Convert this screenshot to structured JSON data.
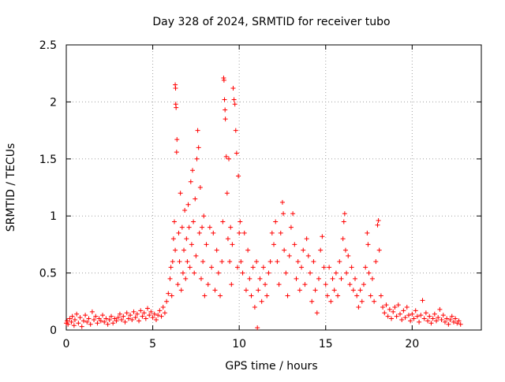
{
  "chart_data": {
    "type": "scatter",
    "title": "Day 328 of 2024, SRMTID for receiver tubo",
    "xlabel": "GPS time / hours",
    "ylabel": "SRMTID / TECUs",
    "xlim": [
      0,
      24
    ],
    "ylim": [
      0,
      2.5
    ],
    "xticks": [
      0,
      5,
      10,
      15,
      20
    ],
    "yticks": [
      0,
      0.5,
      1,
      1.5,
      2,
      2.5
    ],
    "xtick_labels": [
      "0",
      "5",
      "10",
      "15",
      "20"
    ],
    "ytick_labels": [
      "0",
      "0.5",
      "1",
      "1.5",
      "2",
      "2.5"
    ],
    "grid": true,
    "marker": "plus",
    "series": [
      {
        "name": "SRMTID",
        "color": "#ff0000",
        "points": [
          [
            0.0,
            0.06
          ],
          [
            0.05,
            0.08
          ],
          [
            0.1,
            0.05
          ],
          [
            0.2,
            0.1
          ],
          [
            0.3,
            0.07
          ],
          [
            0.35,
            0.12
          ],
          [
            0.45,
            0.04
          ],
          [
            0.5,
            0.09
          ],
          [
            0.6,
            0.14
          ],
          [
            0.7,
            0.06
          ],
          [
            0.8,
            0.11
          ],
          [
            0.9,
            0.03
          ],
          [
            1.0,
            0.08
          ],
          [
            1.1,
            0.13
          ],
          [
            1.2,
            0.07
          ],
          [
            1.3,
            0.1
          ],
          [
            1.4,
            0.05
          ],
          [
            1.5,
            0.16
          ],
          [
            1.6,
            0.09
          ],
          [
            1.7,
            0.12
          ],
          [
            1.8,
            0.06
          ],
          [
            1.9,
            0.1
          ],
          [
            2.0,
            0.08
          ],
          [
            2.1,
            0.13
          ],
          [
            2.2,
            0.07
          ],
          [
            2.3,
            0.1
          ],
          [
            2.4,
            0.05
          ],
          [
            2.5,
            0.09
          ],
          [
            2.6,
            0.12
          ],
          [
            2.7,
            0.06
          ],
          [
            2.8,
            0.1
          ],
          [
            2.9,
            0.08
          ],
          [
            3.0,
            0.11
          ],
          [
            3.1,
            0.14
          ],
          [
            3.2,
            0.09
          ],
          [
            3.3,
            0.12
          ],
          [
            3.4,
            0.07
          ],
          [
            3.5,
            0.15
          ],
          [
            3.6,
            0.1
          ],
          [
            3.7,
            0.13
          ],
          [
            3.8,
            0.09
          ],
          [
            3.9,
            0.16
          ],
          [
            4.0,
            0.11
          ],
          [
            4.1,
            0.14
          ],
          [
            4.2,
            0.08
          ],
          [
            4.3,
            0.17
          ],
          [
            4.4,
            0.12
          ],
          [
            4.5,
            0.15
          ],
          [
            4.6,
            0.1
          ],
          [
            4.7,
            0.19
          ],
          [
            4.8,
            0.13
          ],
          [
            4.9,
            0.16
          ],
          [
            5.0,
            0.11
          ],
          [
            5.1,
            0.14
          ],
          [
            5.2,
            0.09
          ],
          [
            5.3,
            0.13
          ],
          [
            5.4,
            0.17
          ],
          [
            5.5,
            0.12
          ],
          [
            5.6,
            0.2
          ],
          [
            5.7,
            0.15
          ],
          [
            5.8,
            0.25
          ],
          [
            5.9,
            0.32
          ],
          [
            6.0,
            0.45
          ],
          [
            6.05,
            0.55
          ],
          [
            6.1,
            0.3
          ],
          [
            6.15,
            0.6
          ],
          [
            6.2,
            0.8
          ],
          [
            6.25,
            0.95
          ],
          [
            6.3,
            0.7
          ],
          [
            6.3,
            2.15
          ],
          [
            6.32,
            2.12
          ],
          [
            6.33,
            1.98
          ],
          [
            6.35,
            1.95
          ],
          [
            6.38,
            1.56
          ],
          [
            6.4,
            1.67
          ],
          [
            6.45,
            0.4
          ],
          [
            6.5,
            0.85
          ],
          [
            6.55,
            0.6
          ],
          [
            6.6,
            1.2
          ],
          [
            6.65,
            0.35
          ],
          [
            6.7,
            0.9
          ],
          [
            6.75,
            0.5
          ],
          [
            6.8,
            0.7
          ],
          [
            6.85,
            1.05
          ],
          [
            6.9,
            0.45
          ],
          [
            6.95,
            0.8
          ],
          [
            7.0,
            0.6
          ],
          [
            7.05,
            1.1
          ],
          [
            7.1,
            0.9
          ],
          [
            7.15,
            0.55
          ],
          [
            7.2,
            1.3
          ],
          [
            7.25,
            0.75
          ],
          [
            7.3,
            1.4
          ],
          [
            7.35,
            0.95
          ],
          [
            7.4,
            0.5
          ],
          [
            7.45,
            1.15
          ],
          [
            7.5,
            0.65
          ],
          [
            7.55,
            1.5
          ],
          [
            7.6,
            1.75
          ],
          [
            7.65,
            1.6
          ],
          [
            7.7,
            0.85
          ],
          [
            7.75,
            1.25
          ],
          [
            7.8,
            0.45
          ],
          [
            7.85,
            0.9
          ],
          [
            7.9,
            0.6
          ],
          [
            7.95,
            1.0
          ],
          [
            8.0,
            0.3
          ],
          [
            8.1,
            0.75
          ],
          [
            8.2,
            0.4
          ],
          [
            8.3,
            0.9
          ],
          [
            8.4,
            0.55
          ],
          [
            8.5,
            0.85
          ],
          [
            8.6,
            0.35
          ],
          [
            8.7,
            0.7
          ],
          [
            8.8,
            0.5
          ],
          [
            8.9,
            0.3
          ],
          [
            9.0,
            0.6
          ],
          [
            9.05,
            0.95
          ],
          [
            9.1,
            2.21
          ],
          [
            9.12,
            2.19
          ],
          [
            9.15,
            2.02
          ],
          [
            9.18,
            1.93
          ],
          [
            9.2,
            1.85
          ],
          [
            9.25,
            1.52
          ],
          [
            9.3,
            1.2
          ],
          [
            9.35,
            0.8
          ],
          [
            9.4,
            1.5
          ],
          [
            9.45,
            0.6
          ],
          [
            9.5,
            0.9
          ],
          [
            9.55,
            0.4
          ],
          [
            9.6,
            0.75
          ],
          [
            9.65,
            2.12
          ],
          [
            9.7,
            2.02
          ],
          [
            9.75,
            1.98
          ],
          [
            9.8,
            1.75
          ],
          [
            9.85,
            1.55
          ],
          [
            9.9,
            0.55
          ],
          [
            9.95,
            1.35
          ],
          [
            10.0,
            0.85
          ],
          [
            10.05,
            0.95
          ],
          [
            10.1,
            0.6
          ],
          [
            10.2,
            0.5
          ],
          [
            10.3,
            0.85
          ],
          [
            10.4,
            0.35
          ],
          [
            10.5,
            0.7
          ],
          [
            10.6,
            0.45
          ],
          [
            10.7,
            0.3
          ],
          [
            10.8,
            0.55
          ],
          [
            10.9,
            0.2
          ],
          [
            11.0,
            0.6
          ],
          [
            11.05,
            0.02
          ],
          [
            11.1,
            0.35
          ],
          [
            11.2,
            0.45
          ],
          [
            11.3,
            0.25
          ],
          [
            11.4,
            0.55
          ],
          [
            11.5,
            0.4
          ],
          [
            11.6,
            0.3
          ],
          [
            11.7,
            0.5
          ],
          [
            11.8,
            0.6
          ],
          [
            11.9,
            0.85
          ],
          [
            12.0,
            0.75
          ],
          [
            12.1,
            0.95
          ],
          [
            12.2,
            0.6
          ],
          [
            12.3,
            0.4
          ],
          [
            12.4,
            0.85
          ],
          [
            12.5,
            1.12
          ],
          [
            12.55,
            1.02
          ],
          [
            12.6,
            0.7
          ],
          [
            12.7,
            0.5
          ],
          [
            12.8,
            0.3
          ],
          [
            12.9,
            0.65
          ],
          [
            13.0,
            0.9
          ],
          [
            13.1,
            1.02
          ],
          [
            13.2,
            0.75
          ],
          [
            13.3,
            0.45
          ],
          [
            13.4,
            0.6
          ],
          [
            13.5,
            0.35
          ],
          [
            13.6,
            0.55
          ],
          [
            13.7,
            0.7
          ],
          [
            13.8,
            0.4
          ],
          [
            13.9,
            0.8
          ],
          [
            14.0,
            0.65
          ],
          [
            14.1,
            0.5
          ],
          [
            14.2,
            0.25
          ],
          [
            14.3,
            0.6
          ],
          [
            14.4,
            0.35
          ],
          [
            14.5,
            0.15
          ],
          [
            14.6,
            0.45
          ],
          [
            14.7,
            0.7
          ],
          [
            14.8,
            0.82
          ],
          [
            14.9,
            0.55
          ],
          [
            15.0,
            0.4
          ],
          [
            15.1,
            0.3
          ],
          [
            15.2,
            0.55
          ],
          [
            15.3,
            0.25
          ],
          [
            15.4,
            0.45
          ],
          [
            15.5,
            0.35
          ],
          [
            15.6,
            0.5
          ],
          [
            15.7,
            0.3
          ],
          [
            15.8,
            0.6
          ],
          [
            15.9,
            0.45
          ],
          [
            16.0,
            0.8
          ],
          [
            16.05,
            0.95
          ],
          [
            16.1,
            1.02
          ],
          [
            16.15,
            0.7
          ],
          [
            16.2,
            0.5
          ],
          [
            16.3,
            0.65
          ],
          [
            16.4,
            0.4
          ],
          [
            16.5,
            0.55
          ],
          [
            16.6,
            0.35
          ],
          [
            16.7,
            0.45
          ],
          [
            16.8,
            0.3
          ],
          [
            16.9,
            0.2
          ],
          [
            17.0,
            0.35
          ],
          [
            17.1,
            0.25
          ],
          [
            17.2,
            0.4
          ],
          [
            17.3,
            0.55
          ],
          [
            17.4,
            0.85
          ],
          [
            17.45,
            0.75
          ],
          [
            17.5,
            0.5
          ],
          [
            17.6,
            0.3
          ],
          [
            17.7,
            0.45
          ],
          [
            17.8,
            0.25
          ],
          [
            17.9,
            0.6
          ],
          [
            18.0,
            0.92
          ],
          [
            18.05,
            0.96
          ],
          [
            18.1,
            0.7
          ],
          [
            18.2,
            0.3
          ],
          [
            18.3,
            0.2
          ],
          [
            18.4,
            0.15
          ],
          [
            18.5,
            0.22
          ],
          [
            18.6,
            0.12
          ],
          [
            18.7,
            0.18
          ],
          [
            18.8,
            0.1
          ],
          [
            18.9,
            0.16
          ],
          [
            19.0,
            0.2
          ],
          [
            19.1,
            0.12
          ],
          [
            19.2,
            0.22
          ],
          [
            19.3,
            0.14
          ],
          [
            19.4,
            0.09
          ],
          [
            19.5,
            0.17
          ],
          [
            19.6,
            0.11
          ],
          [
            19.7,
            0.2
          ],
          [
            19.8,
            0.13
          ],
          [
            19.9,
            0.08
          ],
          [
            20.0,
            0.14
          ],
          [
            20.1,
            0.1
          ],
          [
            20.2,
            0.17
          ],
          [
            20.3,
            0.12
          ],
          [
            20.4,
            0.07
          ],
          [
            20.5,
            0.13
          ],
          [
            20.6,
            0.26
          ],
          [
            20.7,
            0.1
          ],
          [
            20.8,
            0.15
          ],
          [
            20.9,
            0.08
          ],
          [
            21.0,
            0.12
          ],
          [
            21.1,
            0.06
          ],
          [
            21.2,
            0.1
          ],
          [
            21.3,
            0.14
          ],
          [
            21.4,
            0.08
          ],
          [
            21.5,
            0.11
          ],
          [
            21.6,
            0.18
          ],
          [
            21.7,
            0.09
          ],
          [
            21.8,
            0.13
          ],
          [
            21.9,
            0.07
          ],
          [
            22.0,
            0.1
          ],
          [
            22.1,
            0.05
          ],
          [
            22.2,
            0.09
          ],
          [
            22.3,
            0.12
          ],
          [
            22.4,
            0.07
          ],
          [
            22.5,
            0.1
          ],
          [
            22.6,
            0.06
          ],
          [
            22.7,
            0.08
          ],
          [
            22.8,
            0.05
          ]
        ]
      }
    ]
  }
}
